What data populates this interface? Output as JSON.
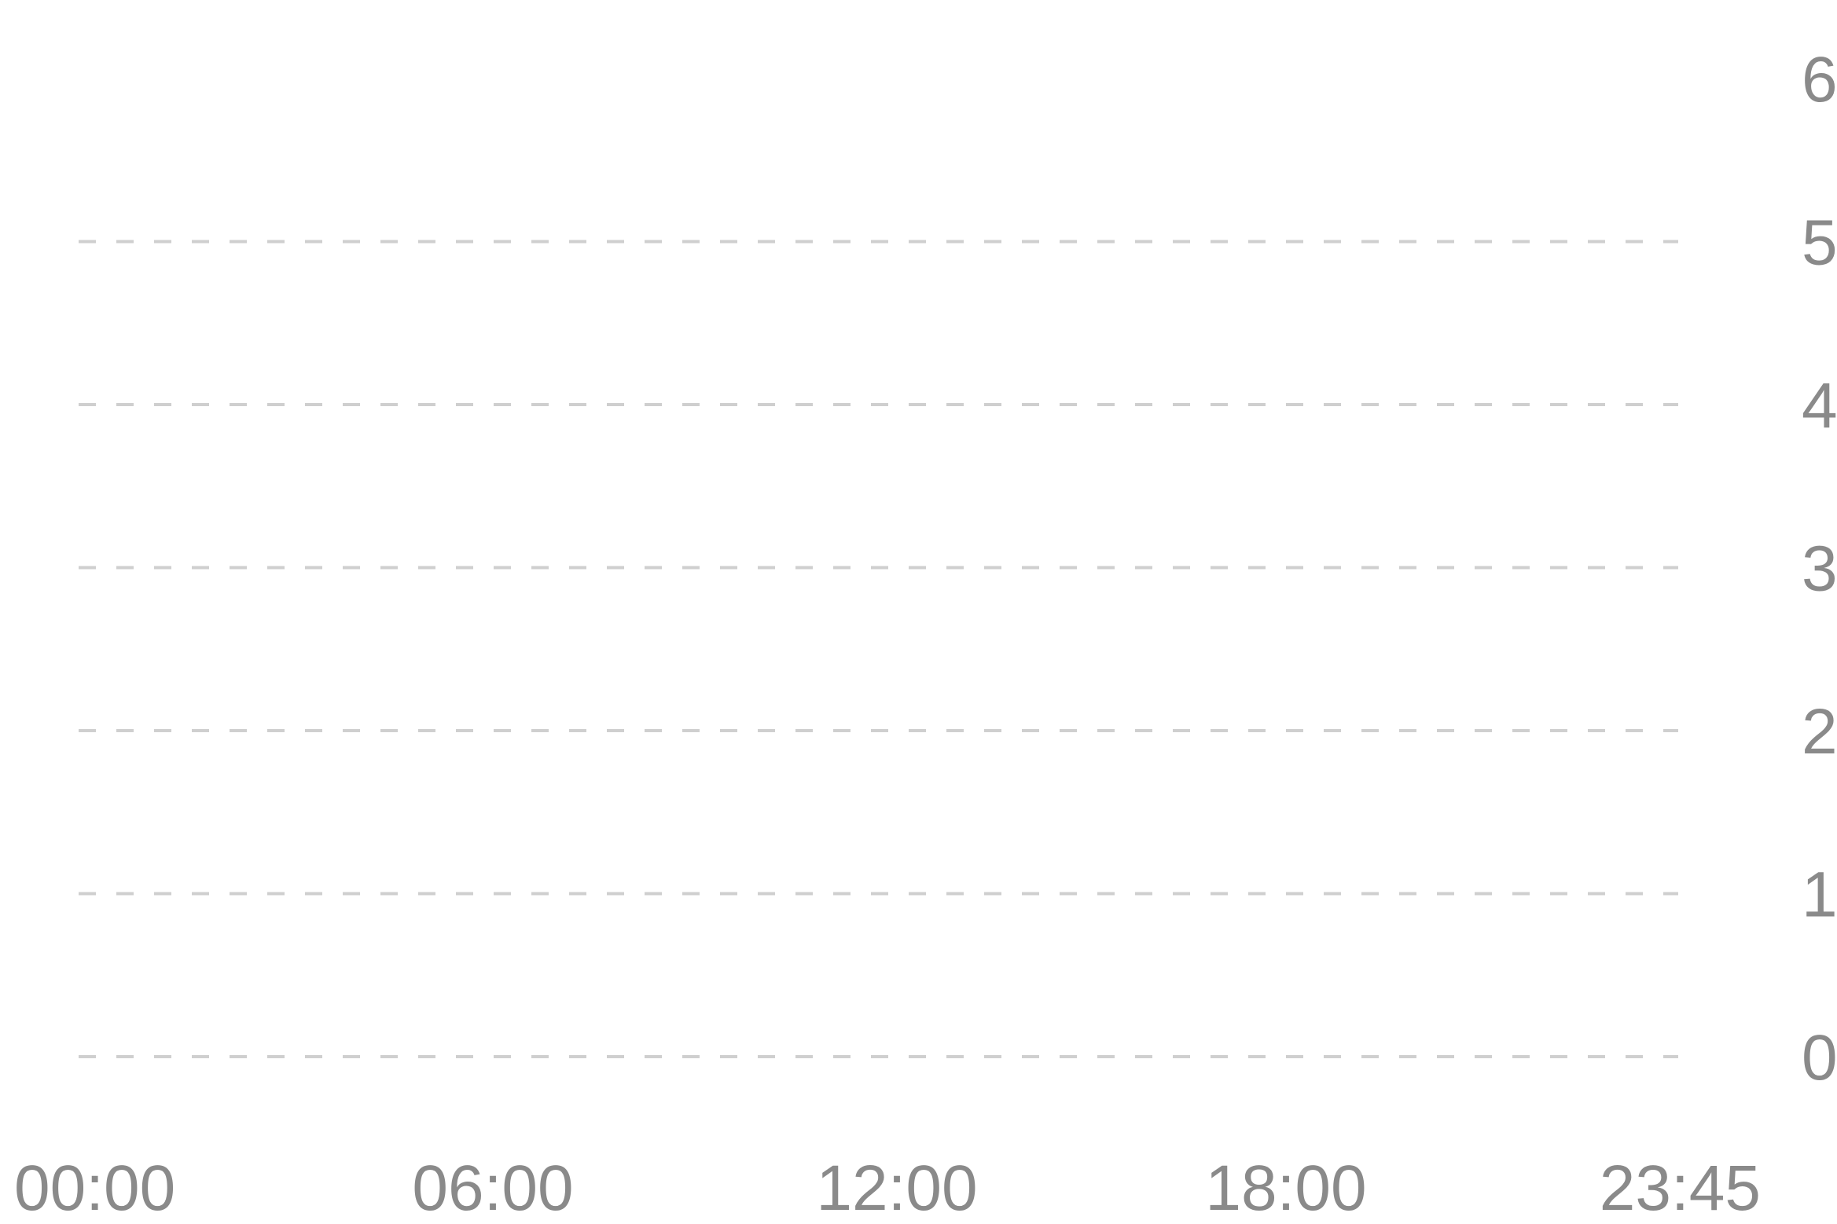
{
  "chart_data": {
    "type": "line",
    "title": "",
    "xlabel": "",
    "ylabel": "",
    "x_ticks": [
      "00:00",
      "06:00",
      "12:00",
      "18:00",
      "23:45"
    ],
    "y_ticks": [
      0,
      1,
      2,
      3,
      4,
      5,
      6
    ],
    "xlim": [
      "00:00",
      "23:45"
    ],
    "ylim": [
      0,
      6
    ],
    "y_axis_side": "right",
    "grid": true,
    "grid_style": "dashed",
    "series": [],
    "colors": {
      "grid": "#cfcfcf",
      "tick_label": "#8a8a8a",
      "background": "#ffffff"
    }
  }
}
